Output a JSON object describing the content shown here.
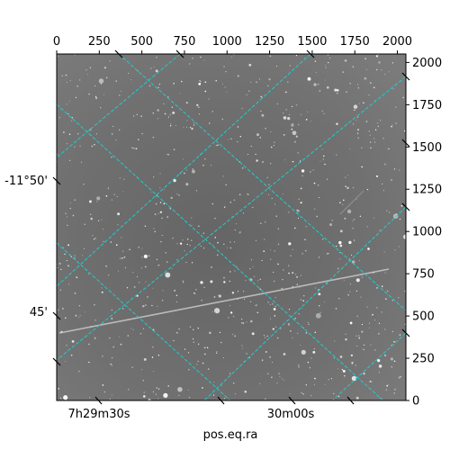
{
  "figure": {
    "xlabel": "pos.eq.ra",
    "colors": {
      "grid": "#22cccc",
      "background_sky": "#6f6f6f",
      "streak": "#cfcfcf"
    }
  },
  "chart_data": {
    "type": "image",
    "xlabel": "pos.eq.ra",
    "ylabel": "",
    "pixel_axes": {
      "x": {
        "range": [
          0,
          2050
        ],
        "ticks": [
          "0",
          "250",
          "500",
          "750",
          "1000",
          "1250",
          "1500",
          "1750",
          "2000"
        ]
      },
      "y": {
        "range": [
          0,
          2050
        ],
        "ticks": [
          "0",
          "250",
          "500",
          "750",
          "1000",
          "1250",
          "1500",
          "1750",
          "2000"
        ]
      }
    },
    "world_axes": {
      "ra_ticks": [
        "7h29m30s",
        "30m00s"
      ],
      "dec_ticks": [
        "-11°50'",
        "45'"
      ]
    },
    "grid": true
  }
}
